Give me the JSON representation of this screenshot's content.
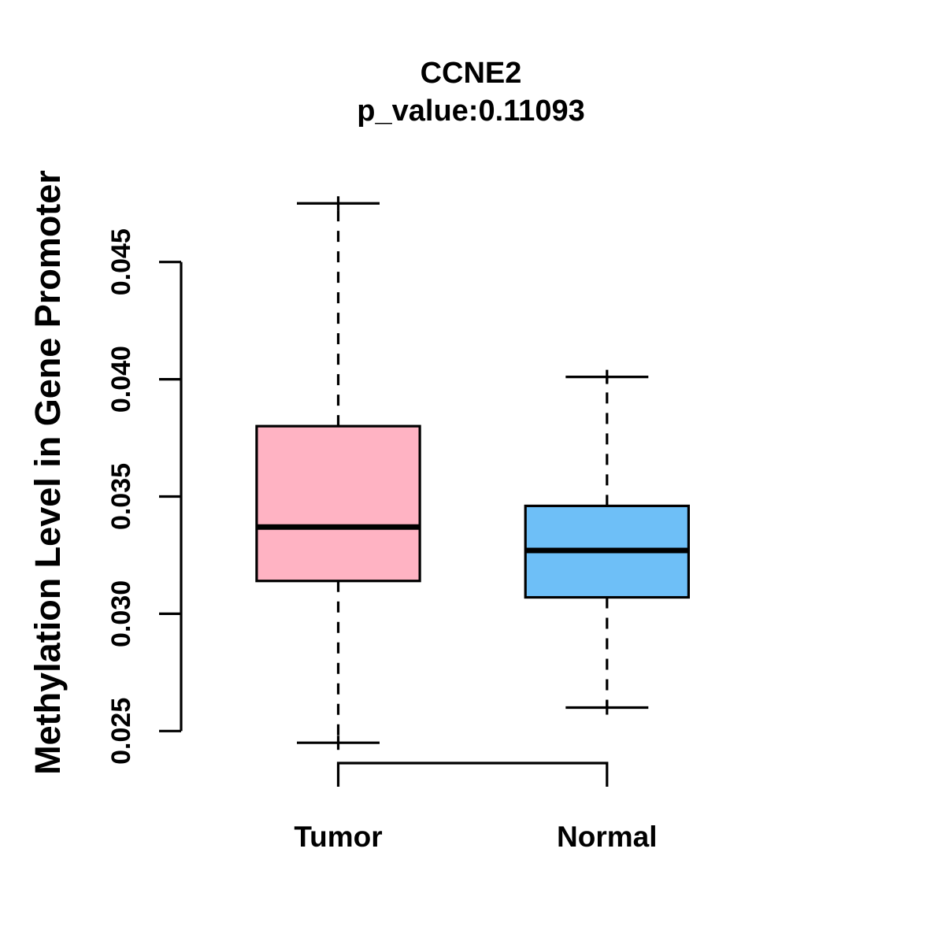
{
  "chart_data": {
    "type": "boxplot",
    "title": "CCNE2",
    "subtitle": "p_value:0.11093",
    "ylabel": "Methylation Level in Gene Promoter",
    "xlabel": "",
    "categories": [
      "Tumor",
      "Normal"
    ],
    "series": [
      {
        "name": "Tumor",
        "fill_color": "#FFB3C3",
        "stats": {
          "whisker_low": 0.0245,
          "q1": 0.0314,
          "median": 0.0337,
          "q3": 0.038,
          "whisker_high": 0.0475
        }
      },
      {
        "name": "Normal",
        "fill_color": "#6EBFF7",
        "stats": {
          "whisker_low": 0.026,
          "q1": 0.0307,
          "median": 0.0327,
          "q3": 0.0346,
          "whisker_high": 0.0401
        }
      }
    ],
    "y_ticks": [
      {
        "value": 0.025,
        "label": "0.025"
      },
      {
        "value": 0.03,
        "label": "0.030"
      },
      {
        "value": 0.035,
        "label": "0.035"
      },
      {
        "value": 0.04,
        "label": "0.040"
      },
      {
        "value": 0.045,
        "label": "0.045"
      }
    ],
    "ylim": [
      0.0242,
      0.0478
    ],
    "grid": false,
    "legend": false,
    "line_color": "#000000",
    "background": "#FFFFFF"
  }
}
